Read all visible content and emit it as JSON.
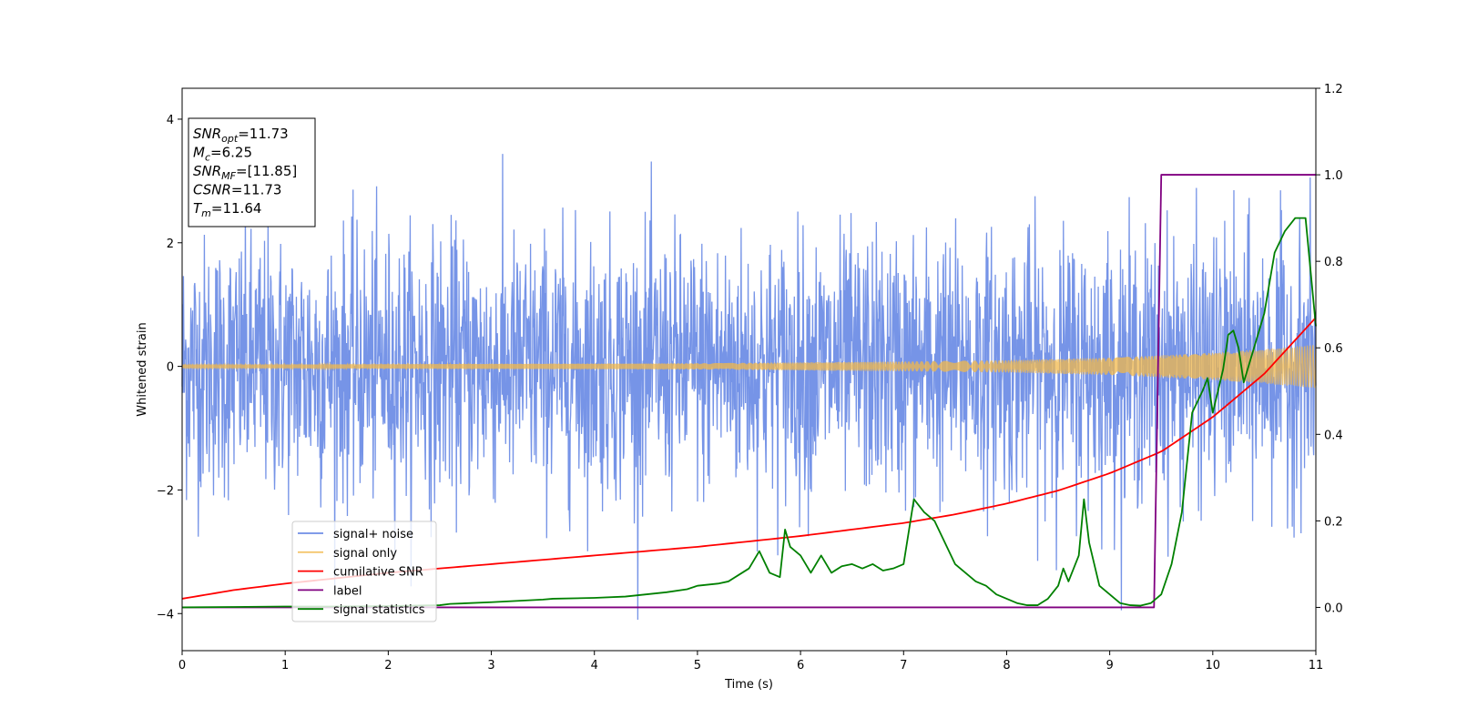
{
  "chart_data": {
    "type": "line",
    "title": "",
    "xlabel": "Time (s)",
    "ylabel": "Whitened strain",
    "xlim": [
      0,
      11
    ],
    "ylim": [
      -4.6,
      4.5
    ],
    "y2lim": [
      -0.1,
      1.2
    ],
    "x_ticks": [
      0,
      1,
      2,
      3,
      4,
      5,
      6,
      7,
      8,
      9,
      10,
      11
    ],
    "y_ticks": [
      -4,
      -2,
      0,
      2,
      4
    ],
    "y2_ticks": [
      0.0,
      0.2,
      0.4,
      0.6,
      0.8,
      1.0,
      1.2
    ],
    "y2_tick_labels": [
      "0.0",
      "0.2",
      "0.4",
      "0.6",
      "0.8",
      "1.0",
      "1.2"
    ],
    "annotation_box": [
      {
        "sym": "SNR",
        "sub": "opt",
        "rest": "=11.73"
      },
      {
        "sym": "M",
        "sub": "c",
        "rest": "=6.25"
      },
      {
        "sym": "SNR",
        "sub": "MF",
        "rest": "=[11.85]"
      },
      {
        "sym": "CSNR",
        "sub": "",
        "rest": "=11.73"
      },
      {
        "sym": "T",
        "sub": "m",
        "rest": "=11.64"
      }
    ],
    "legend": {
      "location": "lower-left",
      "entries": [
        "signal+ noise",
        "signal only",
        "cumilative SNR",
        "label",
        "signal statistics"
      ]
    },
    "colors": {
      "signal_noise": "#6f8ee6",
      "signal_only": "#f2b84b",
      "cumulative_snr": "#ff0000",
      "label": "#800080",
      "signal_statistics": "#008000"
    },
    "series": [
      {
        "name": "signal+ noise",
        "axis": "left",
        "kind": "noise",
        "std": 1.0,
        "peak_range": [
          -4.1,
          4.05
        ]
      },
      {
        "name": "signal only",
        "axis": "left",
        "kind": "chirp_envelope",
        "x": [
          0,
          1,
          2,
          3,
          4,
          5,
          6,
          7,
          8,
          9,
          10,
          10.5,
          11
        ],
        "amplitude": [
          0.03,
          0.03,
          0.035,
          0.04,
          0.045,
          0.05,
          0.065,
          0.08,
          0.1,
          0.14,
          0.22,
          0.28,
          0.35
        ]
      },
      {
        "name": "cumilative SNR",
        "axis": "right",
        "x": [
          0,
          0.5,
          1,
          2,
          3,
          4,
          5,
          6,
          7,
          7.5,
          8,
          8.5,
          9,
          9.5,
          10,
          10.5,
          11
        ],
        "y": [
          0.02,
          0.04,
          0.055,
          0.08,
          0.1,
          0.12,
          0.14,
          0.165,
          0.195,
          0.215,
          0.24,
          0.27,
          0.31,
          0.36,
          0.44,
          0.54,
          0.67
        ]
      },
      {
        "name": "label",
        "axis": "right",
        "x": [
          0,
          9.43,
          9.5,
          11
        ],
        "y": [
          0,
          0,
          1,
          1
        ]
      },
      {
        "name": "signal statistics",
        "axis": "right",
        "x": [
          0,
          0.5,
          1,
          1.5,
          2,
          2.5,
          2.6,
          3,
          3.5,
          3.6,
          4,
          4.3,
          4.5,
          4.7,
          4.9,
          5.0,
          5.2,
          5.3,
          5.4,
          5.5,
          5.6,
          5.7,
          5.8,
          5.85,
          5.9,
          5.95,
          6.0,
          6.1,
          6.2,
          6.3,
          6.4,
          6.5,
          6.6,
          6.7,
          6.8,
          6.9,
          7.0,
          7.1,
          7.2,
          7.3,
          7.4,
          7.5,
          7.6,
          7.7,
          7.8,
          7.9,
          8.0,
          8.1,
          8.2,
          8.3,
          8.4,
          8.5,
          8.55,
          8.6,
          8.65,
          8.7,
          8.75,
          8.8,
          8.9,
          9.0,
          9.1,
          9.2,
          9.3,
          9.4,
          9.5,
          9.6,
          9.7,
          9.8,
          9.9,
          9.95,
          10.0,
          10.05,
          10.1,
          10.15,
          10.2,
          10.25,
          10.3,
          10.4,
          10.5,
          10.6,
          10.7,
          10.8,
          10.9,
          11.0
        ],
        "y": [
          0.0,
          0.001,
          0.002,
          0.002,
          0.003,
          0.005,
          0.008,
          0.012,
          0.018,
          0.02,
          0.022,
          0.025,
          0.03,
          0.035,
          0.042,
          0.05,
          0.055,
          0.06,
          0.075,
          0.09,
          0.13,
          0.08,
          0.07,
          0.18,
          0.14,
          0.13,
          0.12,
          0.08,
          0.12,
          0.08,
          0.095,
          0.1,
          0.09,
          0.1,
          0.085,
          0.09,
          0.1,
          0.25,
          0.22,
          0.2,
          0.15,
          0.1,
          0.08,
          0.06,
          0.05,
          0.03,
          0.02,
          0.01,
          0.005,
          0.005,
          0.02,
          0.05,
          0.09,
          0.06,
          0.09,
          0.12,
          0.25,
          0.15,
          0.05,
          0.03,
          0.01,
          0.005,
          0.004,
          0.01,
          0.03,
          0.1,
          0.22,
          0.45,
          0.5,
          0.53,
          0.45,
          0.5,
          0.55,
          0.63,
          0.64,
          0.6,
          0.52,
          0.6,
          0.68,
          0.82,
          0.87,
          0.9,
          0.9,
          0.65
        ]
      }
    ]
  }
}
